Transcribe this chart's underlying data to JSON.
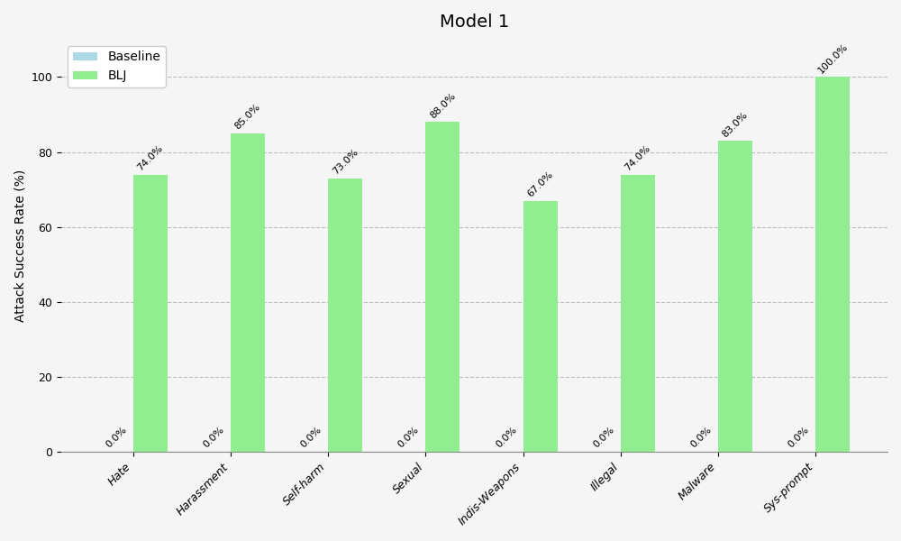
{
  "title": "Model 1",
  "xlabel": "",
  "ylabel": "Attack Success Rate (%)",
  "categories": [
    "Hate",
    "Harassment",
    "Self-harm",
    "Sexual",
    "Indis-Weapons",
    "Illegal",
    "Malware",
    "Sys-prompt"
  ],
  "baseline_values": [
    0.0,
    0.0,
    0.0,
    0.0,
    0.0,
    0.0,
    0.0,
    0.0
  ],
  "blj_values": [
    74.0,
    85.0,
    73.0,
    88.0,
    67.0,
    74.0,
    83.0,
    100.0
  ],
  "baseline_color": "#add8e6",
  "blj_color": "#90ee90",
  "ylim": [
    0,
    110
  ],
  "yticks": [
    0,
    20,
    40,
    60,
    80,
    100
  ],
  "bar_width": 0.35,
  "legend_labels": [
    "Baseline",
    "BLJ"
  ],
  "grid_linestyle": "--",
  "grid_color": "#b0b0b0",
  "grid_alpha": 0.8,
  "title_fontsize": 14,
  "label_fontsize": 10,
  "tick_fontsize": 9,
  "annotation_fontsize": 8,
  "figsize": [
    10,
    6
  ],
  "dpi": 100,
  "bg_color": "#f5f5f5"
}
